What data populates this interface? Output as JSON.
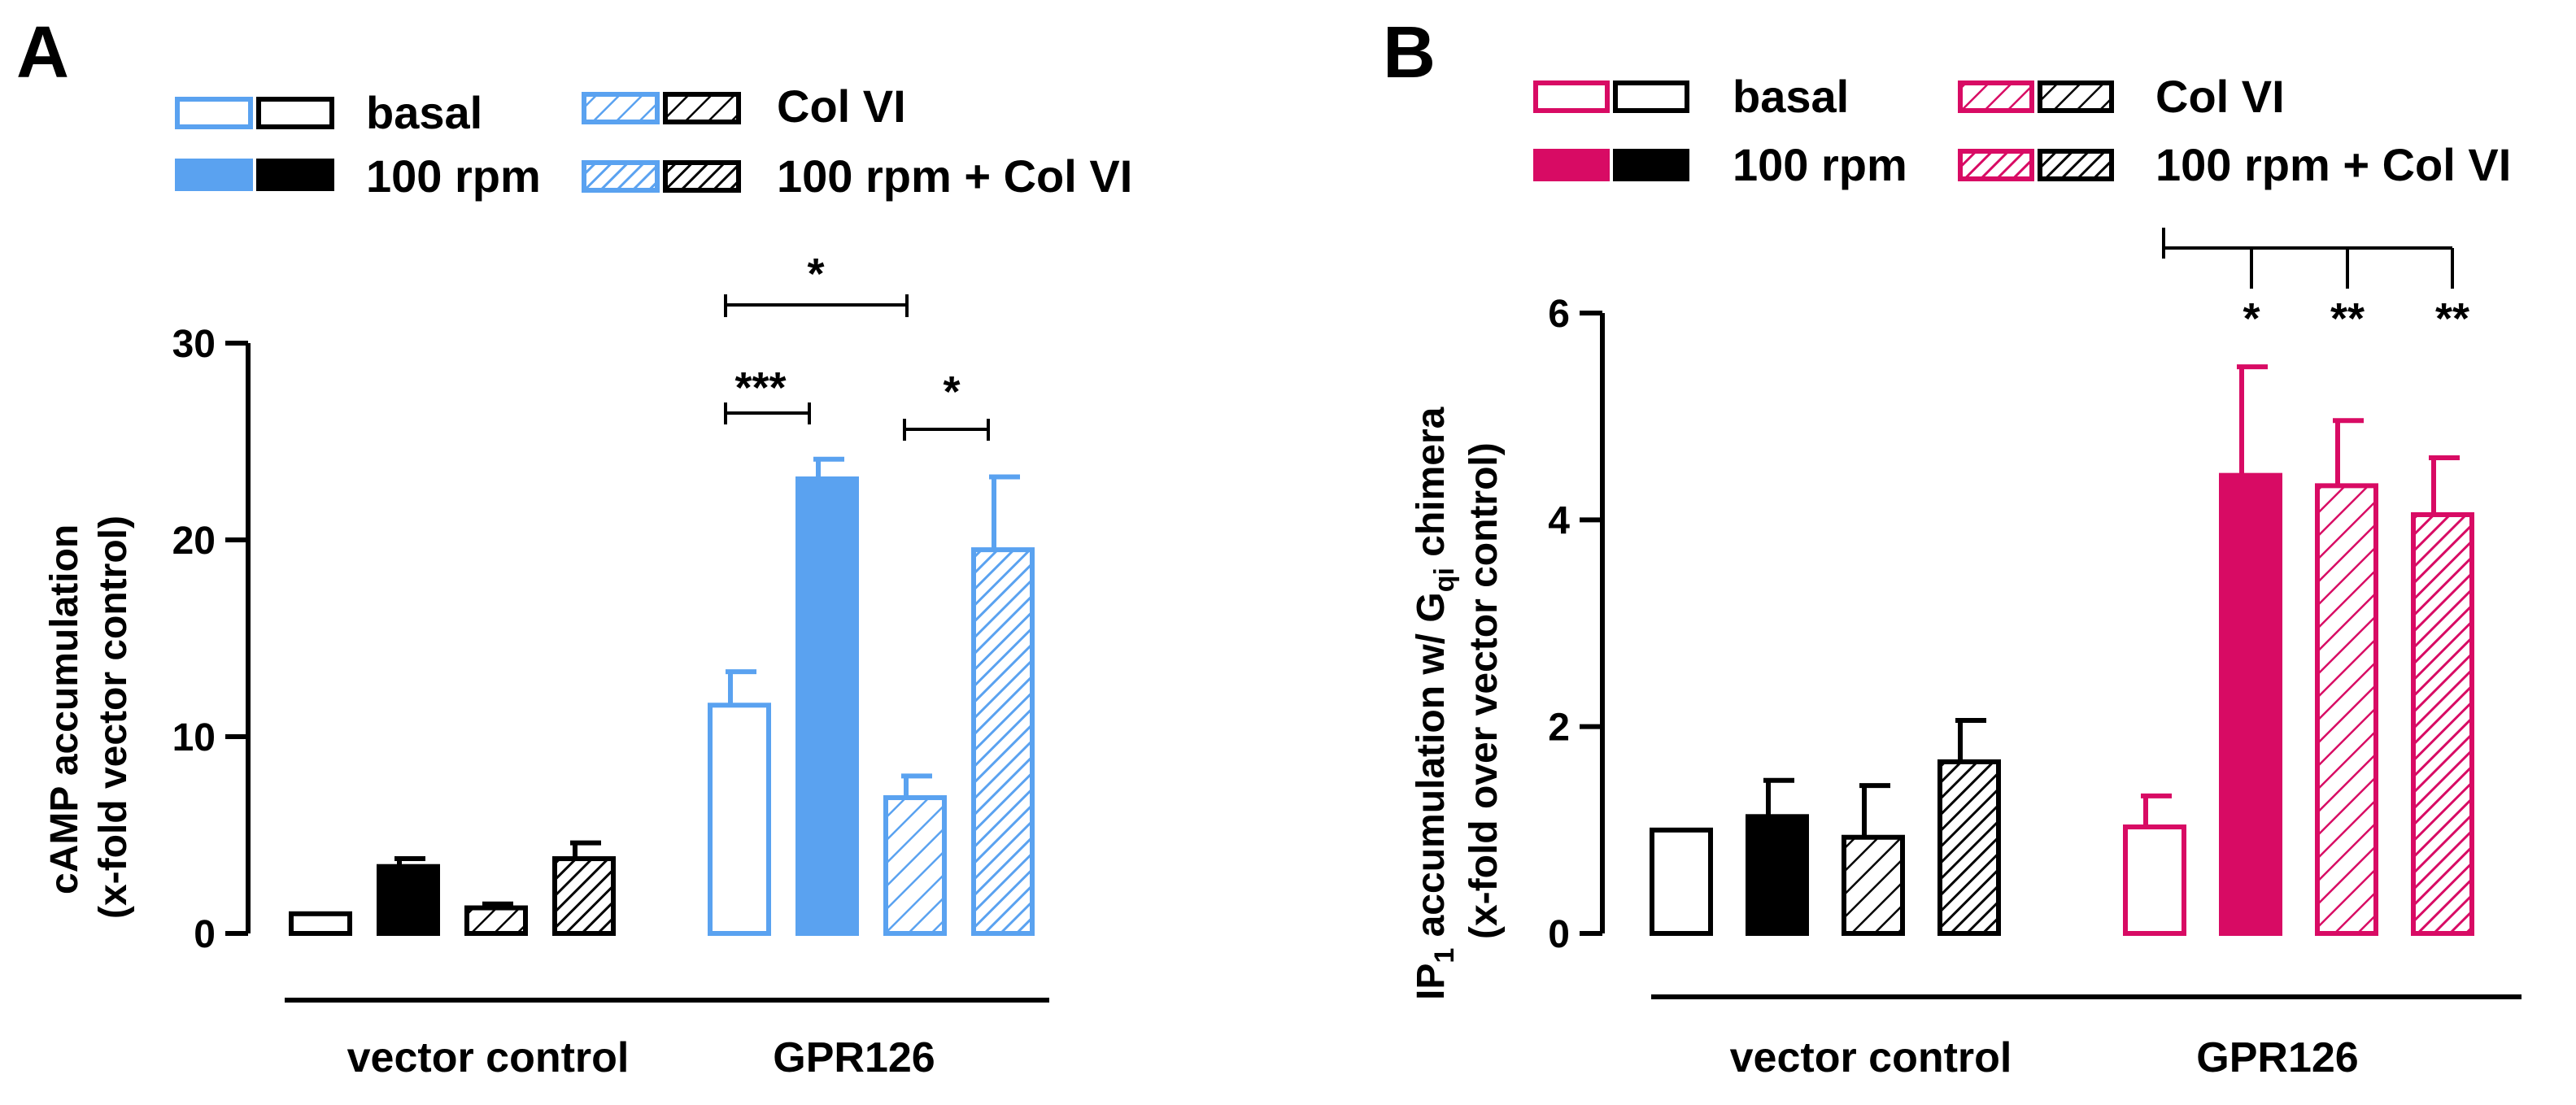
{
  "colors": {
    "blue": "#5aa2f0",
    "pink": "#d80b64",
    "black": "#000000"
  },
  "panelA": {
    "letter": "A",
    "legend": {
      "basal": "basal",
      "rpm": "100 rpm",
      "col": "Col VI",
      "rpmcol": "100 rpm + Col VI"
    },
    "ylabel_line1": "cAMP accumulation",
    "ylabel_line2": "(x-fold vector control)",
    "groups": [
      "vector control",
      "GPR126"
    ],
    "significance": [
      {
        "label": "*",
        "between": [
          "GPR126 basal",
          "GPR126 Col VI"
        ]
      },
      {
        "label": "***",
        "between": [
          "GPR126 basal",
          "GPR126 100 rpm"
        ]
      },
      {
        "label": "*",
        "between": [
          "GPR126 Col VI",
          "GPR126 100 rpm + Col VI"
        ]
      }
    ]
  },
  "panelB": {
    "letter": "B",
    "legend": {
      "basal": "basal",
      "rpm": "100 rpm",
      "col": "Col VI",
      "rpmcol": "100 rpm + Col VI"
    },
    "ylabel_line1_a": "IP",
    "ylabel_line1_sub1": "1",
    "ylabel_line1_b": " accumulation w/ G",
    "ylabel_line1_sub2": "qi",
    "ylabel_line1_c": " chimera",
    "ylabel_line2": "(x-fold over vector control)",
    "groups": [
      "vector control",
      "GPR126"
    ],
    "significance": [
      {
        "label": "*",
        "between": [
          "GPR126 basal",
          "GPR126 100 rpm"
        ]
      },
      {
        "label": "**",
        "between": [
          "GPR126 basal",
          "GPR126 Col VI"
        ]
      },
      {
        "label": "**",
        "between": [
          "GPR126 basal",
          "GPR126 100 rpm + Col VI"
        ]
      }
    ]
  },
  "chart_data": [
    {
      "type": "bar",
      "panel": "A",
      "title": "",
      "ylabel": "cAMP accumulation (x-fold vector control)",
      "ylim": [
        0,
        30
      ],
      "yticks": [
        0,
        10,
        20,
        30
      ],
      "groups": [
        "vector control",
        "GPR126"
      ],
      "series": [
        {
          "name": "basal",
          "values": [
            1.0,
            11.6
          ],
          "errors": [
            0.0,
            1.7
          ],
          "group_colors": [
            "black",
            "blue"
          ],
          "fill": "open"
        },
        {
          "name": "100 rpm",
          "values": [
            3.4,
            23.1
          ],
          "errors": [
            0.4,
            1.0
          ],
          "group_colors": [
            "black",
            "blue"
          ],
          "fill": "solid"
        },
        {
          "name": "Col VI",
          "values": [
            1.3,
            6.9
          ],
          "errors": [
            0.2,
            1.1
          ],
          "group_colors": [
            "black",
            "blue"
          ],
          "fill": "hatched"
        },
        {
          "name": "100 rpm + Col VI",
          "values": [
            3.8,
            19.5
          ],
          "errors": [
            0.8,
            3.7
          ],
          "group_colors": [
            "black",
            "blue"
          ],
          "fill": "hatched-dense"
        }
      ]
    },
    {
      "type": "bar",
      "panel": "B",
      "title": "",
      "ylabel": "IP1 accumulation w/ Gqi chimera (x-fold over vector control)",
      "ylim": [
        0,
        6
      ],
      "yticks": [
        0,
        2,
        4,
        6
      ],
      "groups": [
        "vector control",
        "GPR126"
      ],
      "series": [
        {
          "name": "basal",
          "values": [
            1.0,
            1.03
          ],
          "errors": [
            0.0,
            0.3
          ],
          "group_colors": [
            "black",
            "pink"
          ],
          "fill": "open"
        },
        {
          "name": "100 rpm",
          "values": [
            1.13,
            4.43
          ],
          "errors": [
            0.35,
            1.05
          ],
          "group_colors": [
            "black",
            "pink"
          ],
          "fill": "solid"
        },
        {
          "name": "Col VI",
          "values": [
            0.93,
            4.33
          ],
          "errors": [
            0.5,
            0.63
          ],
          "group_colors": [
            "black",
            "pink"
          ],
          "fill": "hatched"
        },
        {
          "name": "100 rpm + Col VI",
          "values": [
            1.66,
            4.05
          ],
          "errors": [
            0.4,
            0.55
          ],
          "group_colors": [
            "black",
            "pink"
          ],
          "fill": "hatched-dense"
        }
      ]
    }
  ]
}
